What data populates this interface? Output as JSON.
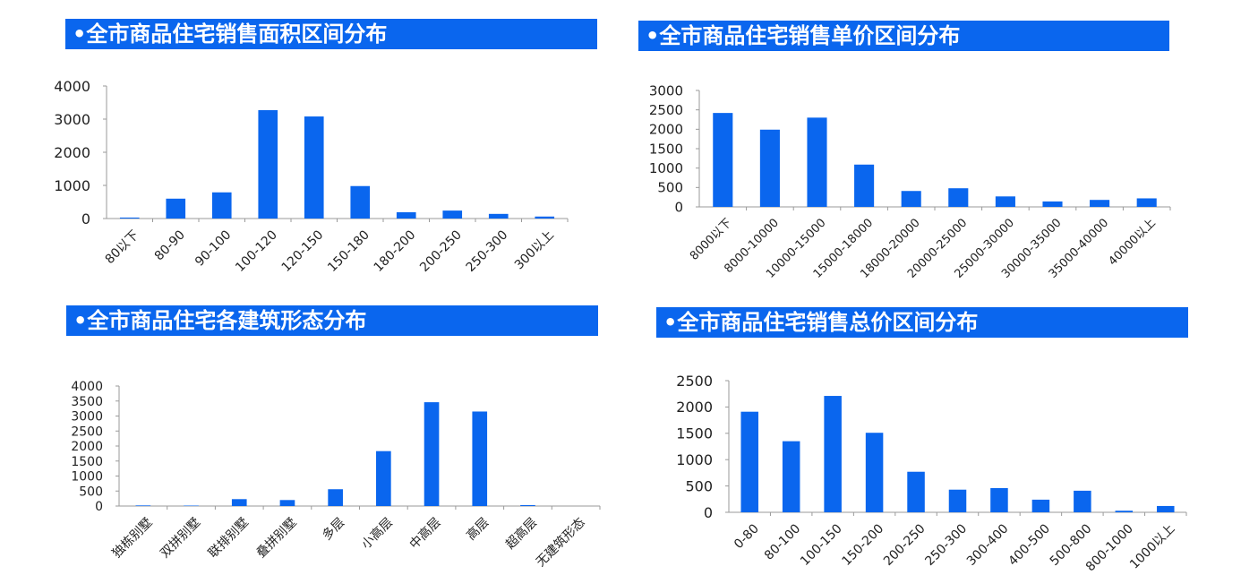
{
  "colors": {
    "title_bg": "#0a66ee",
    "bar": "#0a66ee",
    "axis": "#9a9a9a",
    "tick_text": "#222222",
    "title_text": "#ffffff"
  },
  "titles": {
    "area": "•全市商品住宅销售面积区间分布",
    "unit_price": "•全市商品住宅销售单价区间分布",
    "form": "•全市商品住宅各建筑形态分布",
    "total_price": "•全市商品住宅销售总价区间分布"
  },
  "chart_data": [
    {
      "id": "area",
      "type": "bar",
      "title": "•全市商品住宅销售面积区间分布",
      "categories": [
        "80以下",
        "80-90",
        "90-100",
        "100-120",
        "120-150",
        "150-180",
        "180-200",
        "200-250",
        "250-300",
        "300以上"
      ],
      "values": [
        30,
        600,
        790,
        3270,
        3080,
        980,
        190,
        240,
        140,
        60
      ],
      "yticks": [
        0,
        1000,
        2000,
        3000,
        4000
      ],
      "ylim": [
        0,
        4000
      ],
      "xlabel": "",
      "ylabel": "",
      "grid": false,
      "legend": "none"
    },
    {
      "id": "unit_price",
      "type": "bar",
      "title": "•全市商品住宅销售单价区间分布",
      "categories": [
        "8000以下",
        "8000-10000",
        "10000-15000",
        "15000-18000",
        "18000-20000",
        "20000-25000",
        "25000-30000",
        "30000-35000",
        "35000-40000",
        "40000以上"
      ],
      "values": [
        2420,
        1990,
        2300,
        1090,
        410,
        480,
        270,
        140,
        180,
        220
      ],
      "yticks": [
        0,
        500,
        1000,
        1500,
        2000,
        2500,
        3000
      ],
      "ylim": [
        0,
        3000
      ],
      "xlabel": "",
      "ylabel": "",
      "grid": false,
      "legend": "none"
    },
    {
      "id": "form",
      "type": "bar",
      "title": "•全市商品住宅各建筑形态分布",
      "categories": [
        "独栋别墅",
        "双拼别墅",
        "联排别墅",
        "叠拼别墅",
        "多层",
        "小高层",
        "中高层",
        "高层",
        "超高层",
        "无建筑形态"
      ],
      "values": [
        20,
        15,
        230,
        200,
        560,
        1830,
        3460,
        3150,
        30,
        0
      ],
      "yticks": [
        0,
        500,
        1000,
        1500,
        2000,
        2500,
        3000,
        3500,
        4000
      ],
      "ylim": [
        0,
        4000
      ],
      "xlabel": "",
      "ylabel": "",
      "grid": false,
      "legend": "none"
    },
    {
      "id": "total_price",
      "type": "bar",
      "title": "•全市商品住宅销售总价区间分布",
      "categories": [
        "0-80",
        "80-100",
        "100-150",
        "150-200",
        "200-250",
        "250-300",
        "300-400",
        "400-500",
        "500-800",
        "800-1000",
        "1000以上"
      ],
      "values": [
        1910,
        1350,
        2210,
        1510,
        770,
        430,
        460,
        240,
        410,
        30,
        120
      ],
      "yticks": [
        0,
        500,
        1000,
        1500,
        2000,
        2500
      ],
      "ylim": [
        0,
        2500
      ],
      "xlabel": "",
      "ylabel": "",
      "grid": false,
      "legend": "none"
    }
  ]
}
